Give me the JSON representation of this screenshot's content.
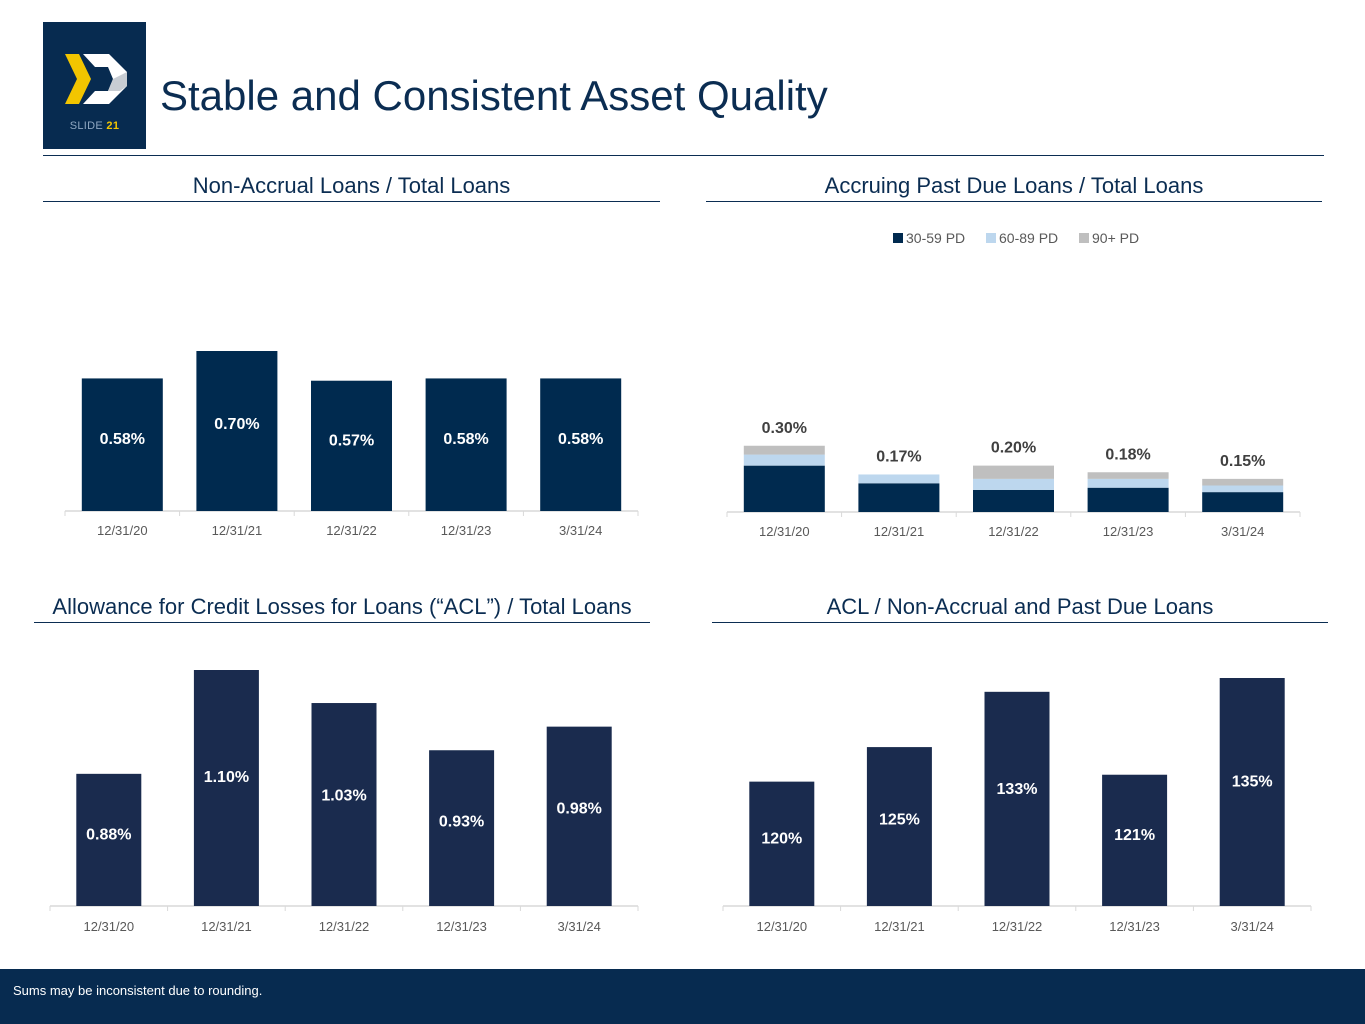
{
  "slide": {
    "title": "Stable and Consistent Asset Quality",
    "slide_label": "SLIDE",
    "slide_number": "21",
    "footer_note": "Sums may be inconsistent due to rounding."
  },
  "colors": {
    "navy": "#072b50",
    "bar_dark": "#002a4f",
    "bar_navy2": "#1a2b4e",
    "light_blue": "#bdd7ee",
    "gray": "#bfbfbf",
    "gold": "#f2c500",
    "logo_gray": "#c8cdd3"
  },
  "chart_data": [
    {
      "id": "nonaccrual",
      "type": "bar",
      "title": "Non-Accrual Loans / Total Loans",
      "categories": [
        "12/31/20",
        "12/31/21",
        "12/31/22",
        "12/31/23",
        "3/31/24"
      ],
      "values": [
        0.58,
        0.7,
        0.57,
        0.58,
        0.58
      ],
      "labels": [
        "0.58%",
        "0.70%",
        "0.57%",
        "0.58%",
        "0.58%"
      ],
      "ylim": [
        0,
        0.7
      ],
      "xlabel": "",
      "ylabel": "",
      "grid": false
    },
    {
      "id": "pastdue",
      "type": "bar",
      "stacked": true,
      "title": "Accruing Past Due Loans / Total Loans",
      "categories": [
        "12/31/20",
        "12/31/21",
        "12/31/22",
        "12/31/23",
        "3/31/24"
      ],
      "series": [
        {
          "name": "30-59 PD",
          "values": [
            0.21,
            0.13,
            0.1,
            0.11,
            0.09
          ]
        },
        {
          "name": "60-89 PD",
          "values": [
            0.05,
            0.04,
            0.05,
            0.04,
            0.03
          ]
        },
        {
          "name": "90+ PD",
          "values": [
            0.04,
            0.0,
            0.06,
            0.03,
            0.03
          ]
        }
      ],
      "totals": [
        "0.30%",
        "0.17%",
        "0.20%",
        "0.18%",
        "0.15%"
      ],
      "legend_position": "top-center",
      "ylim": [
        0,
        0.96
      ],
      "xlabel": "",
      "ylabel": "",
      "grid": false
    },
    {
      "id": "acl",
      "type": "bar",
      "title": "Allowance for Credit Losses for Loans (“ACL”) / Total Loans",
      "categories": [
        "12/31/20",
        "12/31/21",
        "12/31/22",
        "12/31/23",
        "3/31/24"
      ],
      "values": [
        0.88,
        1.1,
        1.03,
        0.93,
        0.98
      ],
      "labels": [
        "0.88%",
        "1.10%",
        "1.03%",
        "0.93%",
        "0.98%"
      ],
      "ylim": [
        0.6,
        1.1
      ],
      "xlabel": "",
      "ylabel": "",
      "grid": false
    },
    {
      "id": "aclcoverage",
      "type": "bar",
      "title": "ACL / Non-Accrual and Past Due Loans",
      "categories": [
        "12/31/20",
        "12/31/21",
        "12/31/22",
        "12/31/23",
        "3/31/24"
      ],
      "values": [
        120,
        125,
        133,
        121,
        135
      ],
      "labels": [
        "120%",
        "125%",
        "133%",
        "121%",
        "135%"
      ],
      "ylim": [
        102,
        135
      ],
      "xlabel": "",
      "ylabel": "",
      "grid": false
    }
  ]
}
